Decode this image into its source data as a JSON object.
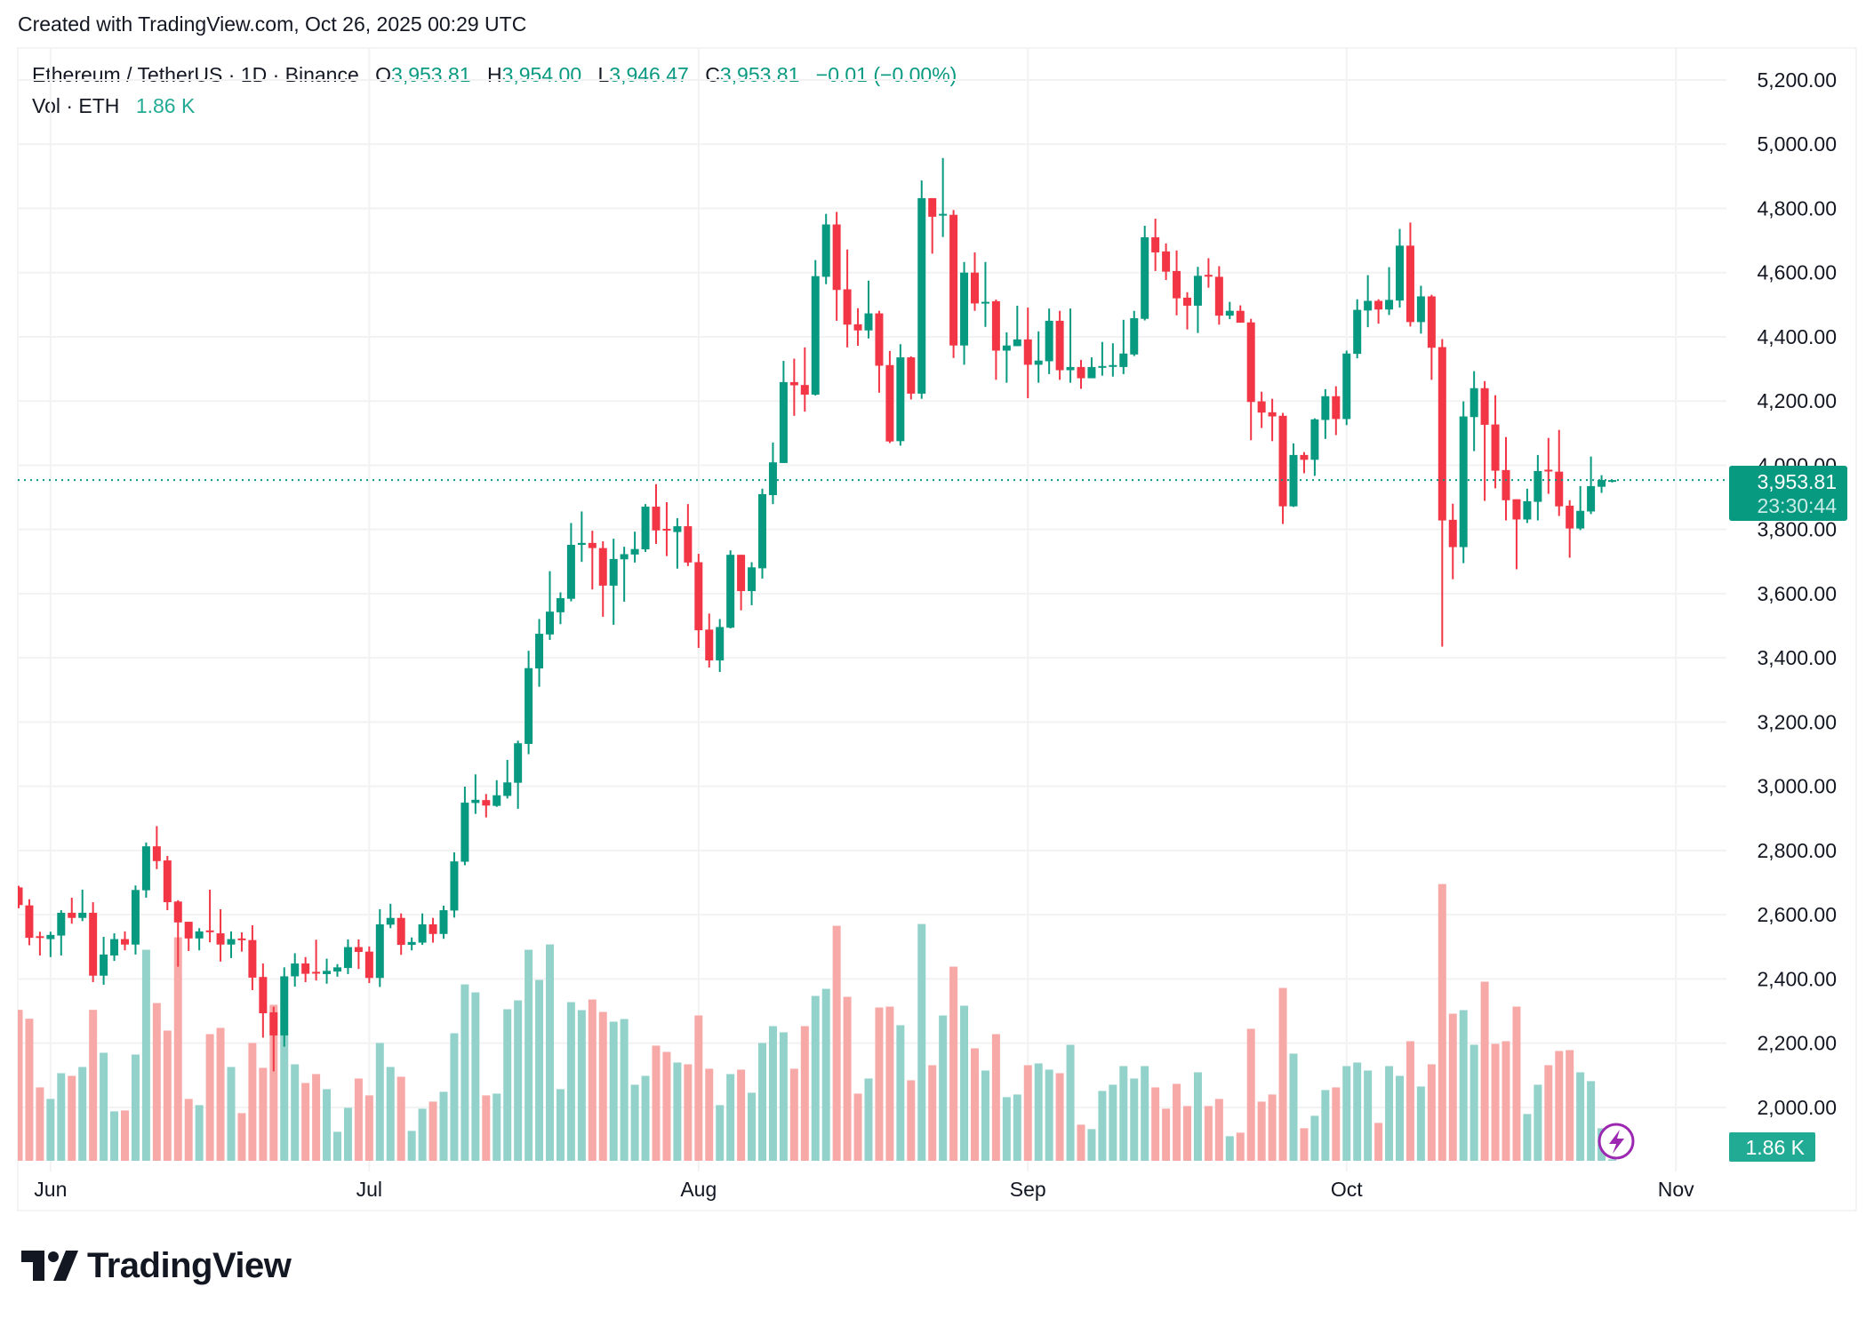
{
  "header": {
    "created_text": "Created with TradingView.com, Oct 26, 2025 00:29 UTC"
  },
  "legend": {
    "symbol": "Ethereum / TetherUS · 1D · Binance",
    "o_label": "O",
    "o_value": "3,953.81",
    "h_label": "H",
    "h_value": "3,954.00",
    "l_label": "L",
    "l_value": "3,946.47",
    "c_label": "C",
    "c_value": "3,953.81",
    "change": "−0.01 (−0.00%)",
    "vol_label": "Vol · ETH",
    "vol_value": "1.86 K"
  },
  "price_badge": {
    "price": "3,953.81",
    "countdown": "23:30:44"
  },
  "volume_badge": {
    "value": "1.86 K"
  },
  "logo": {
    "text": "TradingView"
  },
  "colors": {
    "up": "#089981",
    "down": "#f23645",
    "up_volume": "#93d2cb",
    "down_volume": "#f7a9a7",
    "grid": "#f2f2f2",
    "lightning": "#9c27b0"
  },
  "icons": {
    "bottom_right": "lightning-icon"
  },
  "chart_data": {
    "type": "candlestick",
    "title": "Ethereum / TetherUS · 1D · Binance",
    "ylabel": "",
    "xlabel": "",
    "ylim": [
      2000,
      5200
    ],
    "y_ticks": [
      "5,200.00",
      "5,000.00",
      "4,800.00",
      "4,600.00",
      "4,400.00",
      "4,200.00",
      "4,000.00",
      "3,800.00",
      "3,600.00",
      "3,400.00",
      "3,200.00",
      "3,000.00",
      "2,800.00",
      "2,600.00",
      "2,400.00",
      "2,200.00",
      "2,000.00"
    ],
    "x_ticks": [
      {
        "label": "Jun",
        "date": "2025-06-01"
      },
      {
        "label": "Jul",
        "date": "2025-07-01"
      },
      {
        "label": "Aug",
        "date": "2025-08-01"
      },
      {
        "label": "Sep",
        "date": "2025-09-01"
      },
      {
        "label": "Oct",
        "date": "2025-10-01"
      },
      {
        "label": "Nov",
        "date": "2025-11-01"
      }
    ],
    "grid": true,
    "last_price": 3953.81,
    "volume_note": "volume has no axis; values are relative bar heights",
    "columns": [
      "date",
      "open",
      "high",
      "low",
      "close",
      "volume_relative"
    ],
    "candles": [
      [
        "2025-05-29",
        2685,
        2690,
        2620,
        2630,
        510
      ],
      [
        "2025-05-30",
        2629,
        2648,
        2505,
        2528,
        480
      ],
      [
        "2025-05-31",
        2533,
        2547,
        2473,
        2530,
        248
      ],
      [
        "2025-06-01",
        2524,
        2547,
        2468,
        2537,
        209
      ],
      [
        "2025-06-02",
        2535,
        2614,
        2473,
        2606,
        296
      ],
      [
        "2025-06-03",
        2606,
        2653,
        2572,
        2590,
        287
      ],
      [
        "2025-06-04",
        2590,
        2678,
        2580,
        2606,
        317
      ],
      [
        "2025-06-05",
        2606,
        2639,
        2390,
        2410,
        510
      ],
      [
        "2025-06-06",
        2410,
        2531,
        2382,
        2476,
        365
      ],
      [
        "2025-06-07",
        2473,
        2542,
        2456,
        2524,
        167
      ],
      [
        "2025-06-08",
        2524,
        2548,
        2489,
        2507,
        170
      ],
      [
        "2025-06-09",
        2507,
        2691,
        2476,
        2677,
        359
      ],
      [
        "2025-06-10",
        2676,
        2825,
        2653,
        2813,
        713
      ],
      [
        "2025-06-11",
        2813,
        2876,
        2742,
        2767,
        533
      ],
      [
        "2025-06-12",
        2769,
        2783,
        2614,
        2639,
        440
      ],
      [
        "2025-06-13",
        2641,
        2645,
        2438,
        2576,
        755
      ],
      [
        "2025-06-14",
        2578,
        2578,
        2487,
        2526,
        209
      ],
      [
        "2025-06-15",
        2526,
        2558,
        2489,
        2548,
        188
      ],
      [
        "2025-06-16",
        2551,
        2678,
        2514,
        2547,
        428
      ],
      [
        "2025-06-17",
        2542,
        2617,
        2454,
        2507,
        449
      ],
      [
        "2025-06-18",
        2507,
        2548,
        2465,
        2524,
        317
      ],
      [
        "2025-06-19",
        2526,
        2545,
        2485,
        2521,
        161
      ],
      [
        "2025-06-20",
        2521,
        2567,
        2365,
        2404,
        398
      ],
      [
        "2025-06-21",
        2406,
        2448,
        2217,
        2293,
        314
      ],
      [
        "2025-06-22",
        2296,
        2313,
        2112,
        2224,
        527
      ],
      [
        "2025-06-23",
        2224,
        2436,
        2189,
        2408,
        426
      ],
      [
        "2025-06-24",
        2408,
        2480,
        2376,
        2448,
        326
      ],
      [
        "2025-06-25",
        2448,
        2468,
        2390,
        2416,
        263
      ],
      [
        "2025-06-26",
        2422,
        2522,
        2395,
        2417,
        293
      ],
      [
        "2025-06-27",
        2415,
        2463,
        2385,
        2425,
        242
      ],
      [
        "2025-06-28",
        2423,
        2446,
        2407,
        2436,
        98
      ],
      [
        "2025-06-29",
        2434,
        2523,
        2415,
        2499,
        179
      ],
      [
        "2025-06-30",
        2499,
        2523,
        2431,
        2484,
        278
      ],
      [
        "2025-07-01",
        2485,
        2501,
        2387,
        2403,
        221
      ],
      [
        "2025-07-02",
        2403,
        2617,
        2375,
        2570,
        398
      ],
      [
        "2025-07-03",
        2569,
        2634,
        2558,
        2590,
        317
      ],
      [
        "2025-07-04",
        2590,
        2604,
        2475,
        2506,
        284
      ],
      [
        "2025-07-05",
        2506,
        2529,
        2489,
        2515,
        101
      ],
      [
        "2025-07-06",
        2513,
        2604,
        2506,
        2570,
        176
      ],
      [
        "2025-07-07",
        2570,
        2590,
        2513,
        2540,
        200
      ],
      [
        "2025-07-08",
        2540,
        2628,
        2525,
        2614,
        233
      ],
      [
        "2025-07-09",
        2613,
        2794,
        2591,
        2766,
        431
      ],
      [
        "2025-07-10",
        2765,
        2999,
        2754,
        2949,
        596
      ],
      [
        "2025-07-11",
        2948,
        3037,
        2914,
        2958,
        569
      ],
      [
        "2025-07-12",
        2957,
        2976,
        2903,
        2940,
        221
      ],
      [
        "2025-07-13",
        2939,
        3019,
        2936,
        2972,
        227
      ],
      [
        "2025-07-14",
        2970,
        3082,
        2962,
        3012,
        512
      ],
      [
        "2025-07-15",
        3011,
        3142,
        2930,
        3134,
        542
      ],
      [
        "2025-07-16",
        3132,
        3422,
        3100,
        3368,
        713
      ],
      [
        "2025-07-17",
        3367,
        3521,
        3310,
        3475,
        611
      ],
      [
        "2025-07-18",
        3473,
        3670,
        3456,
        3544,
        731
      ],
      [
        "2025-07-19",
        3542,
        3604,
        3505,
        3586,
        242
      ],
      [
        "2025-07-20",
        3584,
        3820,
        3576,
        3752,
        536
      ],
      [
        "2025-07-21",
        3752,
        3856,
        3699,
        3758,
        509
      ],
      [
        "2025-07-22",
        3758,
        3796,
        3613,
        3742,
        545
      ],
      [
        "2025-07-23",
        3742,
        3763,
        3528,
        3625,
        503
      ],
      [
        "2025-07-24",
        3625,
        3771,
        3503,
        3708,
        470
      ],
      [
        "2025-07-25",
        3707,
        3746,
        3575,
        3723,
        479
      ],
      [
        "2025-07-26",
        3722,
        3793,
        3697,
        3739,
        257
      ],
      [
        "2025-07-27",
        3738,
        3879,
        3730,
        3871,
        287
      ],
      [
        "2025-07-28",
        3871,
        3941,
        3755,
        3797,
        389
      ],
      [
        "2025-07-29",
        3802,
        3885,
        3717,
        3797,
        368
      ],
      [
        "2025-07-30",
        3792,
        3835,
        3678,
        3810,
        332
      ],
      [
        "2025-07-31",
        3810,
        3879,
        3686,
        3697,
        326
      ],
      [
        "2025-08-01",
        3698,
        3724,
        3431,
        3486,
        491
      ],
      [
        "2025-08-02",
        3488,
        3538,
        3370,
        3392,
        311
      ],
      [
        "2025-08-03",
        3392,
        3521,
        3356,
        3496,
        188
      ],
      [
        "2025-08-04",
        3494,
        3735,
        3492,
        3721,
        293
      ],
      [
        "2025-08-05",
        3721,
        3721,
        3548,
        3608,
        308
      ],
      [
        "2025-08-06",
        3608,
        3698,
        3564,
        3682,
        230
      ],
      [
        "2025-08-07",
        3679,
        3927,
        3647,
        3910,
        398
      ],
      [
        "2025-08-08",
        3907,
        4071,
        3879,
        4009,
        455
      ],
      [
        "2025-08-09",
        4007,
        4325,
        4007,
        4259,
        434
      ],
      [
        "2025-08-10",
        4259,
        4332,
        4154,
        4249,
        311
      ],
      [
        "2025-08-11",
        4250,
        4367,
        4167,
        4220,
        455
      ],
      [
        "2025-08-12",
        4220,
        4639,
        4217,
        4589,
        557
      ],
      [
        "2025-08-13",
        4587,
        4783,
        4564,
        4750,
        581
      ],
      [
        "2025-08-14",
        4750,
        4789,
        4450,
        4546,
        794
      ],
      [
        "2025-08-15",
        4548,
        4672,
        4367,
        4438,
        554
      ],
      [
        "2025-08-16",
        4439,
        4489,
        4372,
        4420,
        227
      ],
      [
        "2025-08-17",
        4420,
        4575,
        4395,
        4473,
        278
      ],
      [
        "2025-08-18",
        4473,
        4481,
        4226,
        4310,
        518
      ],
      [
        "2025-08-19",
        4312,
        4356,
        4069,
        4074,
        521
      ],
      [
        "2025-08-20",
        4075,
        4377,
        4061,
        4336,
        458
      ],
      [
        "2025-08-21",
        4336,
        4339,
        4205,
        4223,
        272
      ],
      [
        "2025-08-22",
        4223,
        4887,
        4207,
        4832,
        800
      ],
      [
        "2025-08-23",
        4832,
        4832,
        4659,
        4774,
        323
      ],
      [
        "2025-08-24",
        4779,
        4957,
        4711,
        4783,
        491
      ],
      [
        "2025-08-25",
        4780,
        4795,
        4334,
        4373,
        656
      ],
      [
        "2025-08-26",
        4373,
        4633,
        4313,
        4600,
        524
      ],
      [
        "2025-08-27",
        4600,
        4663,
        4481,
        4504,
        380
      ],
      [
        "2025-08-28",
        4505,
        4633,
        4431,
        4509,
        305
      ],
      [
        "2025-08-29",
        4511,
        4516,
        4266,
        4357,
        428
      ],
      [
        "2025-08-30",
        4357,
        4414,
        4257,
        4373,
        215
      ],
      [
        "2025-08-31",
        4371,
        4497,
        4371,
        4392,
        224
      ],
      [
        "2025-09-01",
        4392,
        4491,
        4209,
        4313,
        323
      ],
      [
        "2025-09-02",
        4313,
        4417,
        4257,
        4326,
        329
      ],
      [
        "2025-09-03",
        4324,
        4488,
        4284,
        4450,
        308
      ],
      [
        "2025-09-04",
        4450,
        4481,
        4266,
        4296,
        296
      ],
      [
        "2025-09-05",
        4296,
        4488,
        4257,
        4306,
        392
      ],
      [
        "2025-09-06",
        4306,
        4328,
        4238,
        4271,
        122
      ],
      [
        "2025-09-07",
        4271,
        4336,
        4271,
        4306,
        107
      ],
      [
        "2025-09-08",
        4305,
        4384,
        4279,
        4309,
        236
      ],
      [
        "2025-09-09",
        4308,
        4380,
        4276,
        4312,
        257
      ],
      [
        "2025-09-10",
        4306,
        4453,
        4284,
        4348,
        320
      ],
      [
        "2025-09-11",
        4345,
        4481,
        4340,
        4458,
        278
      ],
      [
        "2025-09-12",
        4456,
        4746,
        4451,
        4710,
        320
      ],
      [
        "2025-09-13",
        4710,
        4768,
        4605,
        4663,
        248
      ],
      [
        "2025-09-14",
        4666,
        4691,
        4577,
        4603,
        176
      ],
      [
        "2025-09-15",
        4605,
        4669,
        4467,
        4520,
        260
      ],
      [
        "2025-09-16",
        4522,
        4539,
        4423,
        4497,
        185
      ],
      [
        "2025-09-17",
        4497,
        4618,
        4412,
        4590,
        299
      ],
      [
        "2025-09-18",
        4593,
        4645,
        4553,
        4589,
        185
      ],
      [
        "2025-09-19",
        4587,
        4620,
        4438,
        4466,
        209
      ],
      [
        "2025-09-20",
        4466,
        4509,
        4455,
        4481,
        83
      ],
      [
        "2025-09-21",
        4481,
        4498,
        4444,
        4444,
        95
      ],
      [
        "2025-09-22",
        4445,
        4456,
        4078,
        4197,
        446
      ],
      [
        "2025-09-23",
        4199,
        4229,
        4116,
        4164,
        200
      ],
      [
        "2025-09-24",
        4165,
        4207,
        4075,
        4152,
        224
      ],
      [
        "2025-09-25",
        4154,
        4163,
        3817,
        3872,
        584
      ],
      [
        "2025-09-26",
        3872,
        4068,
        3870,
        4032,
        362
      ],
      [
        "2025-09-27",
        4032,
        4041,
        3975,
        4017,
        110
      ],
      [
        "2025-09-28",
        4017,
        4146,
        3967,
        4143,
        152
      ],
      [
        "2025-09-29",
        4141,
        4237,
        4082,
        4215,
        239
      ],
      [
        "2025-09-30",
        4215,
        4246,
        4094,
        4144,
        248
      ],
      [
        "2025-10-01",
        4144,
        4357,
        4125,
        4348,
        320
      ],
      [
        "2025-10-02",
        4347,
        4517,
        4333,
        4484,
        332
      ],
      [
        "2025-10-03",
        4482,
        4592,
        4430,
        4512,
        305
      ],
      [
        "2025-10-04",
        4512,
        4517,
        4441,
        4485,
        128
      ],
      [
        "2025-10-05",
        4485,
        4617,
        4468,
        4515,
        320
      ],
      [
        "2025-10-06",
        4513,
        4736,
        4491,
        4684,
        287
      ],
      [
        "2025-10-07",
        4684,
        4756,
        4432,
        4446,
        404
      ],
      [
        "2025-10-08",
        4446,
        4559,
        4410,
        4526,
        251
      ],
      [
        "2025-10-09",
        4526,
        4531,
        4266,
        4366,
        326
      ],
      [
        "2025-10-10",
        4368,
        4393,
        3435,
        3828,
        935
      ],
      [
        "2025-10-11",
        3830,
        3880,
        3645,
        3745,
        497
      ],
      [
        "2025-10-12",
        3745,
        4199,
        3695,
        4152,
        509
      ],
      [
        "2025-10-13",
        4150,
        4293,
        4044,
        4240,
        392
      ],
      [
        "2025-10-14",
        4240,
        4262,
        3889,
        4126,
        605
      ],
      [
        "2025-10-15",
        4127,
        4218,
        3928,
        3983,
        395
      ],
      [
        "2025-10-16",
        3985,
        4088,
        3828,
        3891,
        404
      ],
      [
        "2025-10-17",
        3894,
        3894,
        3676,
        3831,
        521
      ],
      [
        "2025-10-18",
        3831,
        3927,
        3820,
        3888,
        158
      ],
      [
        "2025-10-19",
        3886,
        4032,
        3828,
        3982,
        257
      ],
      [
        "2025-10-20",
        3986,
        4085,
        3911,
        3982,
        323
      ],
      [
        "2025-10-21",
        3980,
        4110,
        3842,
        3872,
        371
      ],
      [
        "2025-10-22",
        3874,
        3891,
        3712,
        3803,
        374
      ],
      [
        "2025-10-23",
        3803,
        3935,
        3798,
        3858,
        299
      ],
      [
        "2025-10-24",
        3856,
        4027,
        3848,
        3935,
        269
      ],
      [
        "2025-10-25",
        3933,
        3969,
        3914,
        3954,
        110
      ],
      [
        "2025-10-26",
        3953.81,
        3954.0,
        3946.47,
        3953.81,
        5
      ]
    ]
  }
}
